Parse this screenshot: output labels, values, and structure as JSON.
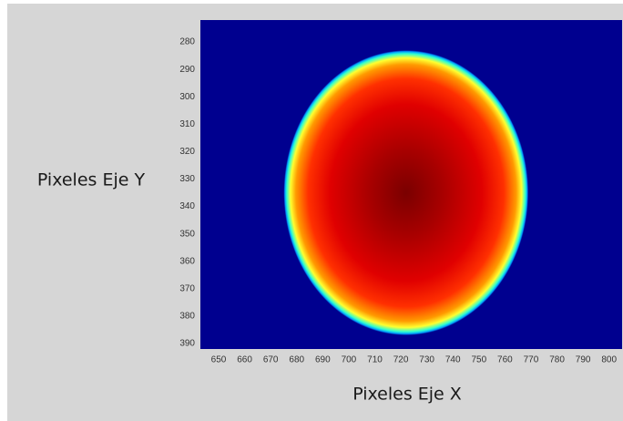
{
  "chart_data": {
    "type": "heatmap",
    "x_label": "Pixeles Eje X",
    "y_label": "Pixeles Eje Y",
    "xlim": [
      643,
      805
    ],
    "xticks": [
      650,
      660,
      670,
      680,
      690,
      700,
      710,
      720,
      730,
      740,
      750,
      760,
      770,
      780,
      790,
      800
    ],
    "ylim": [
      392,
      272
    ],
    "yticks": [
      280,
      290,
      300,
      310,
      320,
      330,
      340,
      350,
      360,
      370,
      380,
      390
    ],
    "background_color": "#00008f",
    "spot": {
      "cx": 722,
      "cy": 335,
      "rx": 47,
      "ry": 52
    },
    "colormap": [
      "#7a0000",
      "#a80000",
      "#e00000",
      "#ff3000",
      "#ff9a00",
      "#ffff30",
      "#30ffd0",
      "#00a0ff",
      "#00008f"
    ]
  }
}
